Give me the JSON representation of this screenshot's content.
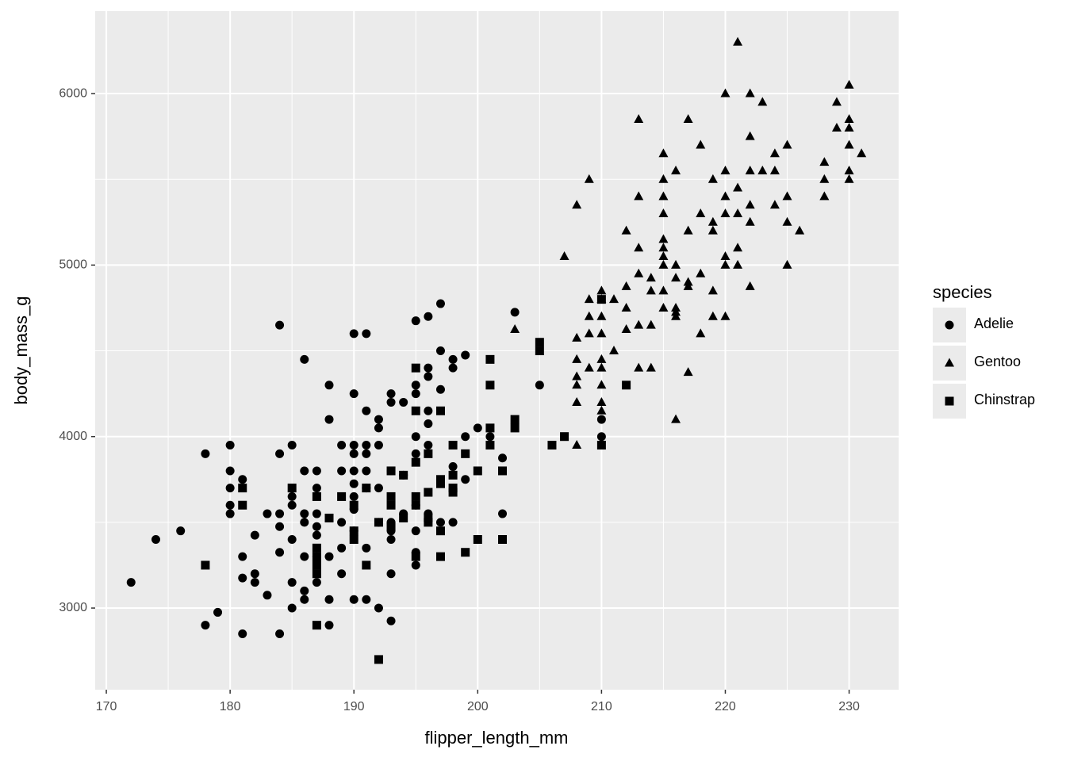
{
  "chart_data": {
    "type": "scatter",
    "x_label": "flipper_length_mm",
    "y_label": "body_mass_g",
    "legend_title": "species",
    "legend_position": "right",
    "grid": true,
    "panel_color": "#ebebeb",
    "grid_color": "#ffffff",
    "xlim": [
      169.1,
      234.0
    ],
    "ylim": [
      2524,
      6481
    ],
    "xticks": [
      170,
      180,
      190,
      200,
      210,
      220,
      230
    ],
    "yticks": [
      3000,
      4000,
      5000,
      6000
    ],
    "x_minor_grid": [
      175,
      185,
      195,
      205,
      215,
      225
    ],
    "y_minor_grid": [
      3500,
      4500,
      5500
    ],
    "series": [
      {
        "name": "Adelie",
        "marker": "circle",
        "color": "#000000",
        "x": [
          172,
          174,
          176,
          178,
          178,
          179,
          180,
          180,
          180,
          180,
          180,
          181,
          181,
          181,
          181,
          182,
          182,
          182,
          183,
          183,
          184,
          184,
          184,
          184,
          184,
          184,
          185,
          185,
          185,
          185,
          185,
          185,
          186,
          186,
          186,
          186,
          186,
          186,
          186,
          187,
          187,
          187,
          187,
          187,
          187,
          187,
          188,
          188,
          188,
          188,
          188,
          189,
          189,
          189,
          189,
          189,
          190,
          190,
          190,
          190,
          190,
          190,
          190,
          190,
          190,
          190,
          191,
          191,
          191,
          191,
          191,
          191,
          191,
          191,
          192,
          192,
          192,
          192,
          192,
          192,
          193,
          193,
          193,
          193,
          193,
          193,
          193,
          193,
          194,
          194,
          194,
          195,
          195,
          195,
          195,
          195,
          195,
          195,
          195,
          195,
          196,
          196,
          196,
          196,
          196,
          196,
          196,
          197,
          197,
          197,
          197,
          198,
          198,
          198,
          198,
          199,
          199,
          199,
          200,
          201,
          202,
          202,
          203,
          205,
          210,
          210
        ],
        "values": [
          3150,
          3400,
          3450,
          3900,
          2900,
          2975,
          3950,
          3800,
          3700,
          3600,
          3550,
          3750,
          3300,
          3175,
          2850,
          3425,
          3200,
          3150,
          3550,
          3075,
          4650,
          3900,
          3550,
          3475,
          3325,
          2850,
          3950,
          3650,
          3600,
          3400,
          3150,
          3000,
          4450,
          3800,
          3550,
          3500,
          3300,
          3100,
          3050,
          3800,
          3700,
          3550,
          3475,
          3425,
          3300,
          3150,
          4300,
          4100,
          3300,
          3050,
          2900,
          3950,
          3800,
          3500,
          3350,
          3200,
          4600,
          4250,
          3950,
          3900,
          3800,
          3725,
          3650,
          3575,
          3450,
          3050,
          4600,
          4150,
          3950,
          3900,
          3800,
          3700,
          3350,
          3050,
          4100,
          4050,
          3950,
          3700,
          3500,
          3000,
          4250,
          4200,
          3800,
          3500,
          3450,
          3400,
          3200,
          2925,
          4200,
          3775,
          3550,
          4675,
          4300,
          4250,
          4000,
          3900,
          3600,
          3450,
          3325,
          3250,
          4700,
          4400,
          4350,
          4150,
          4075,
          3950,
          3550,
          4775,
          4500,
          4275,
          3500,
          4450,
          4400,
          3825,
          3500,
          4475,
          4000,
          3750,
          4050,
          4000,
          3875,
          3550,
          4725,
          4300,
          4000,
          4100
        ]
      },
      {
        "name": "Gentoo",
        "marker": "triangle",
        "color": "#000000",
        "x": [
          203,
          207,
          208,
          208,
          208,
          208,
          208,
          208,
          208,
          209,
          209,
          209,
          209,
          209,
          210,
          210,
          210,
          210,
          210,
          210,
          210,
          210,
          210,
          211,
          211,
          212,
          212,
          212,
          212,
          213,
          213,
          213,
          213,
          213,
          213,
          214,
          214,
          214,
          214,
          215,
          215,
          215,
          215,
          215,
          215,
          215,
          215,
          215,
          215,
          216,
          216,
          216,
          216,
          216,
          216,
          216,
          217,
          217,
          217,
          217,
          217,
          218,
          218,
          218,
          218,
          219,
          219,
          219,
          219,
          219,
          220,
          220,
          220,
          220,
          220,
          220,
          220,
          221,
          221,
          221,
          221,
          221,
          222,
          222,
          222,
          222,
          222,
          222,
          223,
          223,
          224,
          224,
          224,
          225,
          225,
          225,
          225,
          226,
          228,
          228,
          228,
          229,
          229,
          230,
          230,
          230,
          230,
          230,
          230,
          231
        ],
        "values": [
          4625,
          5050,
          5350,
          4575,
          4450,
          4350,
          4300,
          4200,
          3950,
          5500,
          4800,
          4700,
          4600,
          4400,
          4850,
          4800,
          4700,
          4600,
          4450,
          4400,
          4300,
          4200,
          4150,
          4800,
          4500,
          5200,
          4875,
          4750,
          4625,
          5850,
          5400,
          5100,
          4950,
          4650,
          4400,
          4925,
          4850,
          4650,
          4400,
          5650,
          5500,
          5400,
          5300,
          5150,
          5100,
          5050,
          5000,
          4850,
          4750,
          5550,
          5000,
          4925,
          4750,
          4725,
          4700,
          4100,
          5850,
          5200,
          4900,
          4875,
          4375,
          5700,
          5300,
          4950,
          4600,
          5500,
          5250,
          5200,
          4850,
          4700,
          6000,
          5550,
          5400,
          5300,
          5050,
          5000,
          4700,
          6300,
          5450,
          5300,
          5100,
          5000,
          6000,
          5750,
          5550,
          5350,
          5250,
          4875,
          5950,
          5550,
          5650,
          5550,
          5350,
          5700,
          5400,
          5250,
          5000,
          5200,
          5600,
          5500,
          5400,
          5950,
          5800,
          6050,
          5850,
          5800,
          5700,
          5550,
          5500,
          5650
        ]
      },
      {
        "name": "Chinstrap",
        "marker": "square",
        "color": "#000000",
        "x": [
          178,
          181,
          181,
          185,
          187,
          187,
          187,
          187,
          187,
          187,
          188,
          189,
          190,
          190,
          190,
          191,
          191,
          192,
          192,
          193,
          193,
          193,
          193,
          194,
          194,
          195,
          195,
          195,
          195,
          195,
          195,
          196,
          196,
          196,
          196,
          197,
          197,
          197,
          197,
          197,
          198,
          198,
          198,
          198,
          199,
          199,
          200,
          200,
          201,
          201,
          201,
          201,
          202,
          202,
          203,
          203,
          205,
          205,
          206,
          207,
          210,
          210,
          212
        ],
        "values": [
          3250,
          3700,
          3600,
          3700,
          3650,
          3350,
          3300,
          3250,
          3200,
          2900,
          3525,
          3650,
          3600,
          3450,
          3400,
          3700,
          3250,
          3500,
          2700,
          3800,
          3650,
          3600,
          3475,
          3775,
          3525,
          4400,
          4150,
          3850,
          3650,
          3600,
          3300,
          3900,
          3675,
          3525,
          3500,
          4150,
          3750,
          3725,
          3450,
          3300,
          3950,
          3775,
          3700,
          3675,
          3900,
          3325,
          3800,
          3400,
          4450,
          4300,
          4050,
          3950,
          3800,
          3400,
          4100,
          4050,
          4550,
          4500,
          3950,
          4000,
          4800,
          3950,
          4300
        ]
      }
    ]
  }
}
